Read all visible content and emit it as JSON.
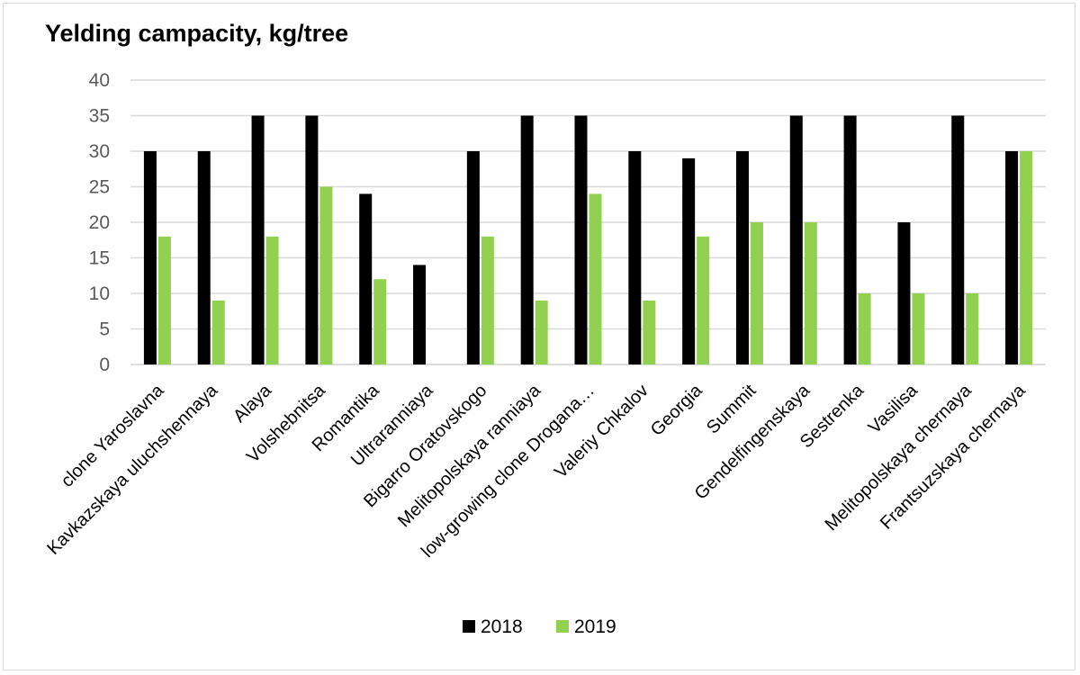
{
  "chart_data": {
    "type": "bar",
    "title": "Yelding campacity, kg/tree",
    "xlabel": "",
    "ylabel": "",
    "ylim": [
      0,
      40
    ],
    "yticks": [
      0,
      5,
      10,
      15,
      20,
      25,
      30,
      35,
      40
    ],
    "grid": true,
    "legend_position": "bottom",
    "categories": [
      "clone Yaroslavna",
      "Kavkazskaya uluchshennaya",
      "Alaya",
      "Volshebnitsa",
      "Romantika",
      "Ultraranniaya",
      "Bigarro Oratovskogo",
      "Melitopolskaya ranniaya",
      "low-growing clone Drogana…",
      "Valeriy Chkalov",
      "Georgia",
      "Summit",
      "Gendelfingenskaya",
      "Sestrenka",
      "Vasilisa",
      "Melitopolskaya chernaya",
      "Frantsuzskaya chernaya"
    ],
    "series": [
      {
        "name": "2018",
        "color": "#000000",
        "values": [
          30,
          30,
          35,
          35,
          24,
          14,
          30,
          35,
          35,
          30,
          29,
          30,
          35,
          35,
          20,
          35,
          30
        ]
      },
      {
        "name": "2019",
        "color": "#92d050",
        "values": [
          18,
          9,
          18,
          25,
          12,
          0,
          18,
          9,
          24,
          9,
          18,
          20,
          20,
          10,
          10,
          10,
          30
        ]
      }
    ]
  }
}
